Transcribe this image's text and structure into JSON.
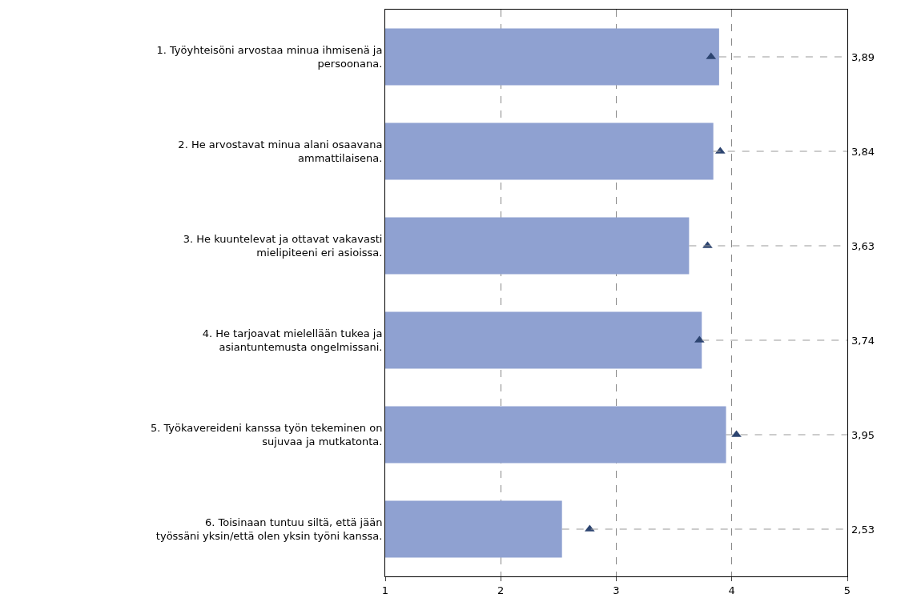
{
  "chart_data": {
    "type": "bar",
    "orientation": "horizontal",
    "categories": [
      "1. Työyhteisöni arvostaa minua ihmisenä ja persoonana.",
      "2. He arvostavat minua alani osaavana ammattilaisena.",
      "3. He kuuntelevat ja ottavat vakavasti mielipiteeni eri asioissa.",
      "4. He tarjoavat mielellään tukea ja asiantuntemusta ongelmissani.",
      "5. Työkavereideni kanssa työn tekeminen on sujuvaa ja mutkatonta.",
      "6. Toisinaan tuntuu siltä, että jään työssäni yksin/että olen yksin työni kanssa."
    ],
    "series": [
      {
        "color": "#8fa1d1",
        "values": [
          3.89,
          3.84,
          3.63,
          3.74,
          3.95,
          2.53
        ],
        "value_labels": [
          "3,89",
          "3,84",
          "3,63",
          "3,74",
          "3,95",
          "2,53"
        ]
      },
      {
        "type": "scatter",
        "marker": "triangle",
        "color": "#2c4470",
        "values": [
          3.82,
          3.9,
          3.79,
          3.72,
          4.04,
          2.77
        ]
      }
    ],
    "xlim": [
      1,
      5
    ],
    "xticks": [
      1,
      2,
      3,
      4,
      5
    ],
    "grid": "x"
  }
}
